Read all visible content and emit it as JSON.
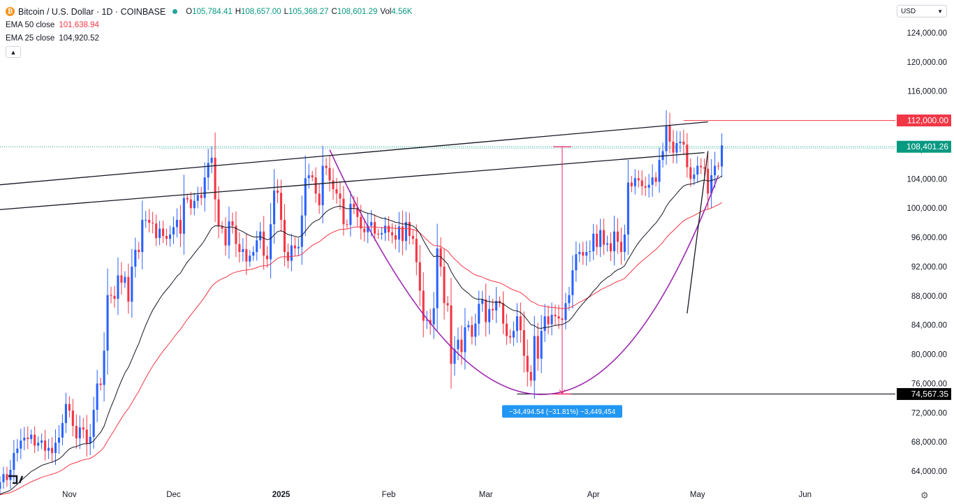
{
  "header": {
    "symbol_icon": "bitcoin-icon",
    "title": "Bitcoin / U.S. Dollar · 1D · COINBASE",
    "ohlc": {
      "o_label": "O",
      "o": "105,784.41",
      "h_label": "H",
      "h": "108,657.00",
      "l_label": "L",
      "l": "105,368.27",
      "c_label": "C",
      "c": "108,601.29",
      "vol_label": "Vol",
      "vol": "4.56K"
    },
    "ema50": {
      "label": "EMA 50 close",
      "value": "101,638.94"
    },
    "ema25": {
      "label": "EMA 25 close",
      "value": 104920.52,
      "value_text": "104,920.52"
    },
    "collapse_icon": "chevron-up-icon"
  },
  "currency_select": {
    "value": "USD",
    "icon": "chevron-down-icon"
  },
  "settings_icon": "gear-icon",
  "colors": {
    "up": "#2962ff",
    "down": "#f23645",
    "ema50": "#f23645",
    "ema25": "#131722",
    "bowl": "#9c27b0",
    "measure": "#e91e63",
    "measure_label_bg": "#2196f3"
  },
  "chart_data": {
    "type": "candlestick",
    "ylim": [
      62000,
      126000
    ],
    "y_ticks": [
      "124,000.00",
      "120,000.00",
      "116,000.00",
      "112,000.00",
      "108,000.00",
      "104,000.00",
      "100,000.00",
      "96,000.00",
      "92,000.00",
      "88,000.00",
      "84,000.00",
      "80,000.00",
      "76,000.00",
      "72,000.00",
      "68,000.00",
      "64,000.00"
    ],
    "x_ticks": [
      {
        "label": "Nov",
        "date": "2024-11-01"
      },
      {
        "label": "Dec",
        "date": "2024-12-01"
      },
      {
        "label": "2025",
        "date": "2025-01-01",
        "bold": true
      },
      {
        "label": "Feb",
        "date": "2025-02-01"
      },
      {
        "label": "Mar",
        "date": "2025-03-01"
      },
      {
        "label": "Apr",
        "date": "2025-04-01"
      },
      {
        "label": "May",
        "date": "2025-05-01"
      },
      {
        "label": "Jun",
        "date": "2025-06-01"
      }
    ],
    "x_range": [
      "2024-10-12",
      "2025-06-27"
    ],
    "first_date": "2024-10-12",
    "price_labels": [
      {
        "value": 112000,
        "text": "112,000.00",
        "style": "red"
      },
      {
        "value": 108401.26,
        "text": "108,401.26",
        "style": "green"
      },
      {
        "value": 74567.35,
        "text": "74,567.35",
        "style": "black"
      }
    ],
    "series": [
      {
        "name": "Bitcoin / U.S. Dollar",
        "closes": [
          62500,
          63600,
          62800,
          64200,
          66500,
          67100,
          68200,
          68600,
          68400,
          69000,
          67500,
          67900,
          68200,
          66800,
          67200,
          66500,
          67900,
          68600,
          70600,
          73200,
          72300,
          70200,
          68500,
          70000,
          69700,
          67800,
          68700,
          72400,
          76000,
          75800,
          80500,
          88100,
          88000,
          87600,
          90800,
          89800,
          90600,
          87200,
          92000,
          94300,
          94000,
          98400,
          98400,
          98000,
          97900,
          95900,
          97200,
          96200,
          95800,
          96400,
          97400,
          98400,
          96500,
          101400,
          101200,
          100000,
          101000,
          101800,
          101400,
          104200,
          106200,
          106900,
          101200,
          97500,
          97200,
          94900,
          98200,
          97600,
          95100,
          94000,
          94400,
          92700,
          93500,
          94000,
          95600,
          96800,
          93500,
          93000,
          97800,
          102400,
          102100,
          98400,
          94000,
          92800,
          94900,
          94500,
          94700,
          99000,
          104100,
          104500,
          104200,
          102000,
          100400,
          105800,
          105500,
          103800,
          102600,
          102000,
          101300,
          97800,
          97700,
          100600,
          100100,
          98800,
          97200,
          96700,
          97600,
          98100,
          96500,
          96400,
          96600,
          97600,
          96700,
          96300,
          95700,
          97500,
          95500,
          98100,
          96200,
          95800,
          92600,
          88700,
          84600,
          84700,
          84100,
          86300,
          94500,
          92000,
          87000,
          86700,
          78700,
          80700,
          82000,
          80300,
          83700,
          84000,
          82400,
          84200,
          86900,
          87500,
          84400,
          86200,
          86000,
          87300,
          87000,
          84200,
          82500,
          82300,
          83200,
          85200,
          83300,
          79800,
          77600,
          76400,
          82500,
          79400,
          83200,
          85200,
          84100,
          85400,
          85200,
          84900,
          84700,
          87000,
          88100,
          91500,
          93700,
          94000,
          93500,
          94000,
          94100,
          96500,
          94700,
          97000,
          95000,
          95200,
          94100,
          96800,
          95400,
          94000,
          96400,
          103500,
          103000,
          104100,
          103800,
          103000,
          102800,
          103200,
          104200,
          103600,
          106600,
          107800,
          111300,
          109100,
          107600,
          108900,
          109100,
          108700,
          105600,
          104000,
          104600,
          105800,
          105600,
          105400,
          102000,
          104500,
          105800,
          105700,
          108600
        ]
      }
    ],
    "annotations": {
      "resistance_level": 112000,
      "neckline_level": 108401.26,
      "support_level": 74567.35,
      "measure_text": "−34,494.54 (−31.81%) −3,449,454"
    }
  }
}
